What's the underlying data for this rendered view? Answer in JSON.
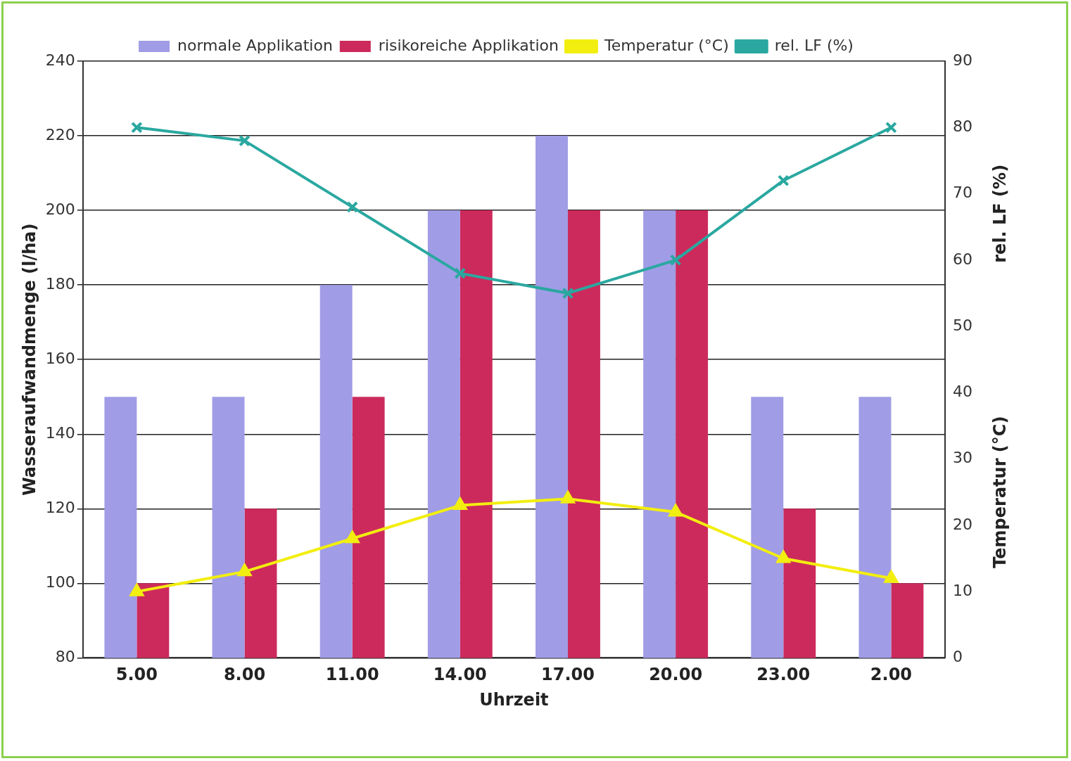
{
  "chart_data": {
    "type": "bar",
    "xlabel": "Uhrzeit",
    "ylabel": "Wasseraufwandmenge (l/ha)",
    "y2label": "rel. LF (%)",
    "annotations": [
      "Temperatur (°C)"
    ],
    "categories": [
      "5.00",
      "8.00",
      "11.00",
      "14.00",
      "17.00",
      "20.00",
      "23.00",
      "2.00"
    ],
    "series": [
      {
        "name": "normale Applikation",
        "color": "#a09ce6",
        "values": [
          150,
          150,
          180,
          200,
          220,
          200,
          150,
          150
        ]
      },
      {
        "name": "risikoreiche Applikation",
        "color": "#cc2a5c",
        "values": [
          100,
          120,
          150,
          200,
          200,
          200,
          120,
          100
        ]
      },
      {
        "name": "Temperatur (°C)",
        "type": "line",
        "axis": "y2",
        "marker": "triangle",
        "color": "#f2ee10",
        "values": [
          10,
          13,
          18,
          23,
          24,
          22,
          15,
          12
        ]
      },
      {
        "name": "rel. LF (%)",
        "type": "line",
        "axis": "y2",
        "marker": "cross",
        "color": "#2aa8a0",
        "values": [
          80,
          78,
          68,
          58,
          55,
          60,
          72,
          80
        ]
      }
    ],
    "ylim": [
      80,
      240
    ],
    "yticks": [
      80,
      100,
      120,
      140,
      160,
      180,
      200,
      220,
      240
    ],
    "y2lim": [
      0,
      90
    ],
    "y2ticks": [
      0,
      10,
      20,
      30,
      40,
      50,
      60,
      70,
      80,
      90
    ],
    "grid": "y",
    "legend": "top"
  }
}
